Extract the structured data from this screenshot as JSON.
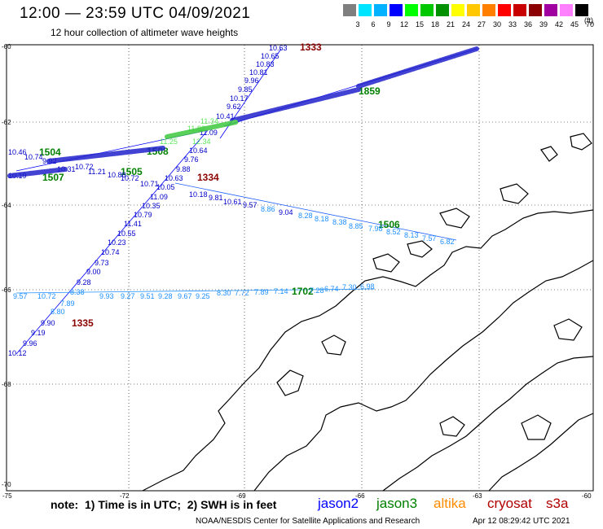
{
  "header": {
    "title": "12:00 — 23:59 UTC 04/09/2021",
    "subtitle": "12 hour collection of altimeter wave heights"
  },
  "legend": {
    "unit": "(ft)",
    "colors": [
      "#7f7f7f",
      "#00e5ff",
      "#00b2ff",
      "#0000ff",
      "#00ff00",
      "#00c800",
      "#009000",
      "#ffff00",
      "#ffc800",
      "#ff8000",
      "#ff0000",
      "#c80000",
      "#8b0000",
      "#a000a0",
      "#ff80ff",
      "#000000"
    ],
    "labels": [
      "3",
      "6",
      "9",
      "12",
      "15",
      "18",
      "21",
      "24",
      "27",
      "30",
      "33",
      "36",
      "39",
      "42",
      "45",
      "70"
    ]
  },
  "axes": {
    "lat_labels": [
      "-60",
      "-62",
      "-64",
      "-66",
      "-68",
      "-70"
    ],
    "lon_labels": [
      "-75",
      "-72",
      "-69",
      "-66",
      "-63",
      "-60"
    ]
  },
  "tracks": [
    {
      "id": "1333",
      "satellite": "cryosat"
    },
    {
      "id": "1334",
      "satellite": "cryosat"
    },
    {
      "id": "1335",
      "satellite": "cryosat"
    },
    {
      "id": "1504",
      "satellite": "jason3"
    },
    {
      "id": "1505",
      "satellite": "jason3"
    },
    {
      "id": "1506",
      "satellite": "jason3"
    },
    {
      "id": "1507",
      "satellite": "jason3"
    },
    {
      "id": "1508",
      "satellite": "jason3"
    },
    {
      "id": "1859",
      "satellite": "jason3"
    },
    {
      "id": "1702",
      "satellite": "jason3"
    }
  ],
  "labels_1333": [
    "10.63",
    "10.65",
    "10.83",
    "10.81",
    "9.96",
    "9.85",
    "10.17",
    "9.62",
    "10.41",
    "11.09"
  ],
  "labels_1334": [
    "9.76",
    "9.88",
    "10.63",
    "10.71",
    "10.05",
    "11.09",
    "10.35",
    "10.79",
    "11.41",
    "10.55",
    "10.23",
    "10.74",
    "9.73",
    "9.00",
    "9.28",
    "8.38",
    "7.89",
    "8.80",
    "9.90",
    "9.19",
    "9.96",
    "10.12"
  ],
  "labels_1506": [
    "10.18",
    "9.81",
    "10.61",
    "9.57",
    "8.86",
    "9.04",
    "8.28",
    "8.18",
    "8.38",
    "8.85",
    "7.98",
    "8.52",
    "8.13",
    "7.57",
    "6.82"
  ],
  "labels_1504": [
    "10.46",
    "10.74",
    "9.92",
    "10.19",
    "10.31",
    "10.72",
    "11.21",
    "10.88",
    "10.72",
    "10.64"
  ],
  "labels_1702": [
    "9.57",
    "10.72",
    "9.93",
    "9.27",
    "9.51",
    "9.28",
    "9.67",
    "9.25",
    "8.30",
    "7.72",
    "7.89",
    "7.14",
    "7.28",
    "6.74",
    "7.30",
    "6.98"
  ],
  "labels_light": [
    "12.34",
    "11.82",
    "11.34",
    "11.25"
  ],
  "satellites": [
    {
      "name": "jason2",
      "color": "#0000ff"
    },
    {
      "name": "jason3",
      "color": "#008000"
    },
    {
      "name": "altika",
      "color": "#ff8c00"
    },
    {
      "name": "cryosat",
      "color": "#b00000"
    },
    {
      "name": "s3a",
      "color": "#b00000"
    }
  ],
  "note": "note:  1) Time is in UTC;  2) SWH is in feet",
  "credit": "NOAA/NESDIS Center for Satellite Applications and Research",
  "timestamp": "Apr 12 08:29:42 UTC 2021"
}
